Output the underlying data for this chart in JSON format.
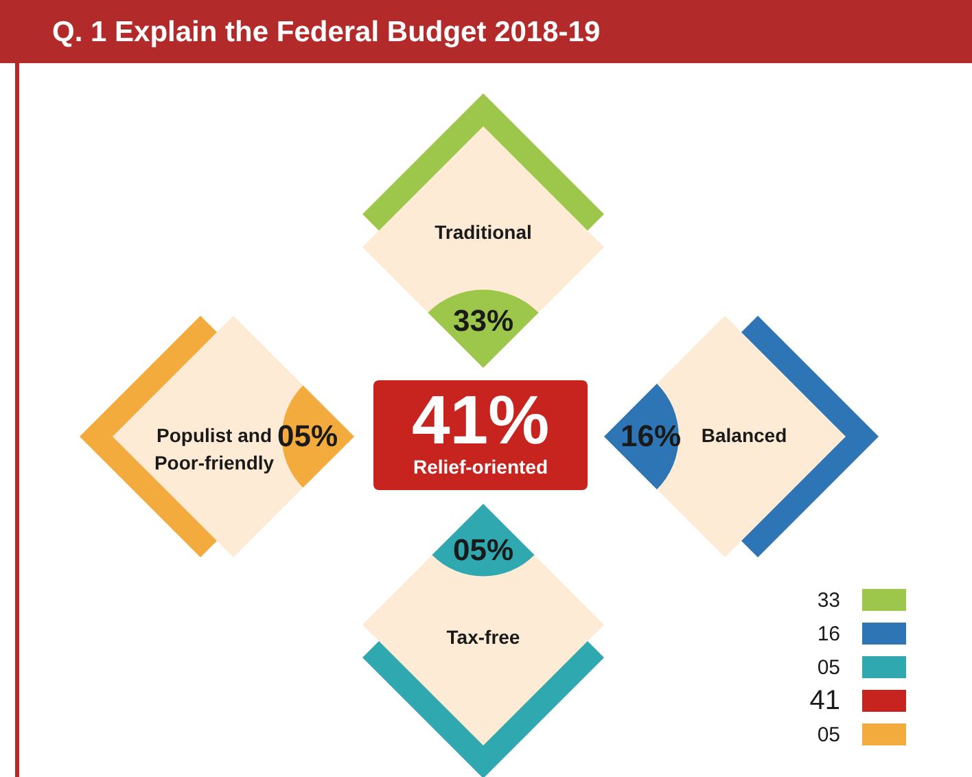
{
  "chart_data": {
    "type": "other",
    "title": "Q. 1 Explain the Federal Budget 2018-19",
    "categories": [
      "Traditional",
      "Balanced",
      "Tax-free",
      "Relief-oriented",
      "Populist and Poor-friendly"
    ],
    "values": [
      33,
      16,
      5,
      41,
      5
    ],
    "value_labels": [
      "33%",
      "16%",
      "05%",
      "41%",
      "05%"
    ],
    "colors": [
      "#9dc74a",
      "#2e75b6",
      "#2fa8b0",
      "#c8241f",
      "#f2ab3c"
    ],
    "annotations": [
      "33",
      "16",
      "05",
      "41",
      "05"
    ]
  }
}
